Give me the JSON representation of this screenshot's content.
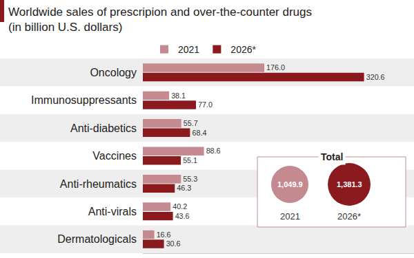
{
  "chart_data": {
    "type": "bar",
    "orientation": "horizontal",
    "title": "Worldwide sales of prescripion and over-the-counter drugs",
    "subtitle": "(in billion U.S. dollars)",
    "categories": [
      "Oncology",
      "Immunosuppressants",
      "Anti-diabetics",
      "Vaccines",
      "Anti-rheumatics",
      "Anti-virals",
      "Dermatologicals"
    ],
    "series": [
      {
        "name": "2021",
        "color": "#c48a8f",
        "values": [
          176.0,
          38.1,
          55.7,
          88.6,
          55.3,
          40.2,
          16.6
        ],
        "value_labels": [
          "176.0",
          "38.1",
          "55.7",
          "88.6",
          "55.3",
          "40.2",
          "16.6"
        ]
      },
      {
        "name": "2026*",
        "color": "#8b1a1e",
        "values": [
          320.6,
          77.0,
          68.4,
          55.1,
          46.3,
          43.6,
          30.6
        ],
        "value_labels": [
          "320.6",
          "77.0",
          "68.4",
          "55.1",
          "46.3",
          "43.6",
          "30.6"
        ]
      }
    ],
    "xlim": [
      0,
      393
    ],
    "xticks": [],
    "tick_labels": "y",
    "grid": false,
    "legend": "top",
    "data_labels": true,
    "totals": {
      "title": "Total",
      "labels": [
        "2021",
        "2026*"
      ],
      "values": [
        1049.9,
        1381.3
      ],
      "value_labels": [
        "1,049.9",
        "1,381.3"
      ]
    }
  }
}
